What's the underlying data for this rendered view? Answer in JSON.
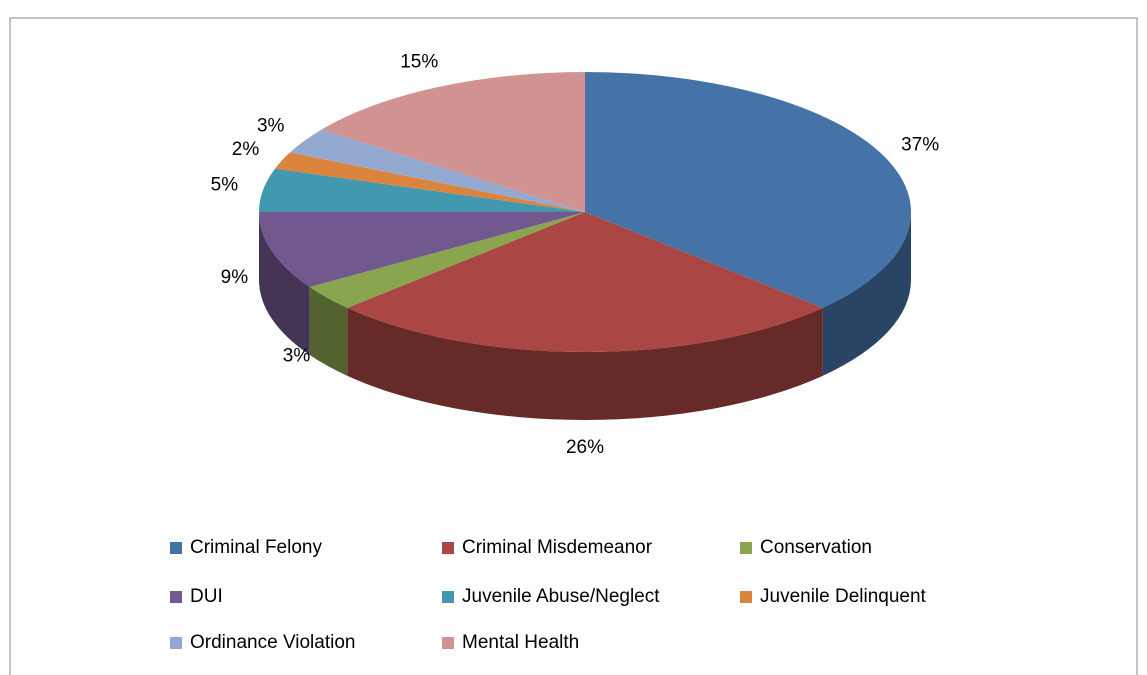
{
  "chart_data": {
    "type": "pie",
    "categories": [
      "Criminal Felony",
      "Criminal Misdemeanor",
      "Conservation",
      "DUI",
      "Juvenile Abuse/Neglect",
      "Juvenile Delinquent",
      "Ordinance Violation",
      "Mental Health"
    ],
    "values": [
      37,
      26,
      3,
      9,
      5,
      2,
      3,
      15
    ],
    "value_labels": [
      "37%",
      "26%",
      "3%",
      "9%",
      "5%",
      "2%",
      "3%",
      "15%"
    ],
    "colors": [
      "#4572a7",
      "#aa4643",
      "#89a54e",
      "#71588f",
      "#4198af",
      "#db843d",
      "#93a9cf",
      "#d19392"
    ],
    "legend": "bottom"
  }
}
